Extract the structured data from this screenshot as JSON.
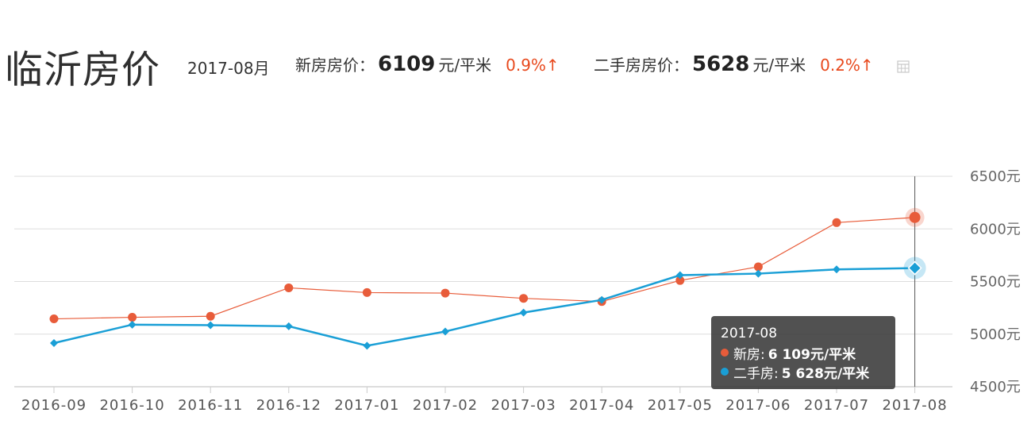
{
  "header": {
    "city": "临沂房价",
    "date": "2017-08月",
    "new_label": "新房房价：",
    "new_value": "6109",
    "new_unit": "元/平米",
    "new_change": "0.9%↑",
    "second_label": "二手房房价：",
    "second_value": "5628",
    "second_unit": "元/平米",
    "second_change": "0.2%↑"
  },
  "colors": {
    "new": "#e85c3a",
    "second": "#1a9fd6",
    "change": "#e8491d"
  },
  "tooltip": {
    "date": "2017-08",
    "new_label": "新房:",
    "new_value": "6 109元/平米",
    "second_label": "二手房:",
    "second_value": "5 628元/平米"
  },
  "chart_data": {
    "type": "line",
    "categories": [
      "2016-09",
      "2016-10",
      "2016-11",
      "2016-12",
      "2017-01",
      "2017-02",
      "2017-03",
      "2017-04",
      "2017-05",
      "2017-06",
      "2017-07",
      "2017-08"
    ],
    "series": [
      {
        "name": "新房",
        "values": [
          5145,
          5160,
          5170,
          5440,
          5395,
          5390,
          5340,
          5310,
          5510,
          5640,
          6060,
          6109
        ]
      },
      {
        "name": "二手房",
        "values": [
          4915,
          5090,
          5085,
          5075,
          4890,
          5025,
          5205,
          5325,
          5560,
          5575,
          5615,
          5628
        ]
      }
    ],
    "yticks": [
      "4500元",
      "5000元",
      "5500元",
      "6000元",
      "6500元"
    ],
    "ylim": [
      4500,
      6500
    ],
    "grid": true,
    "highlight_index": 11
  }
}
